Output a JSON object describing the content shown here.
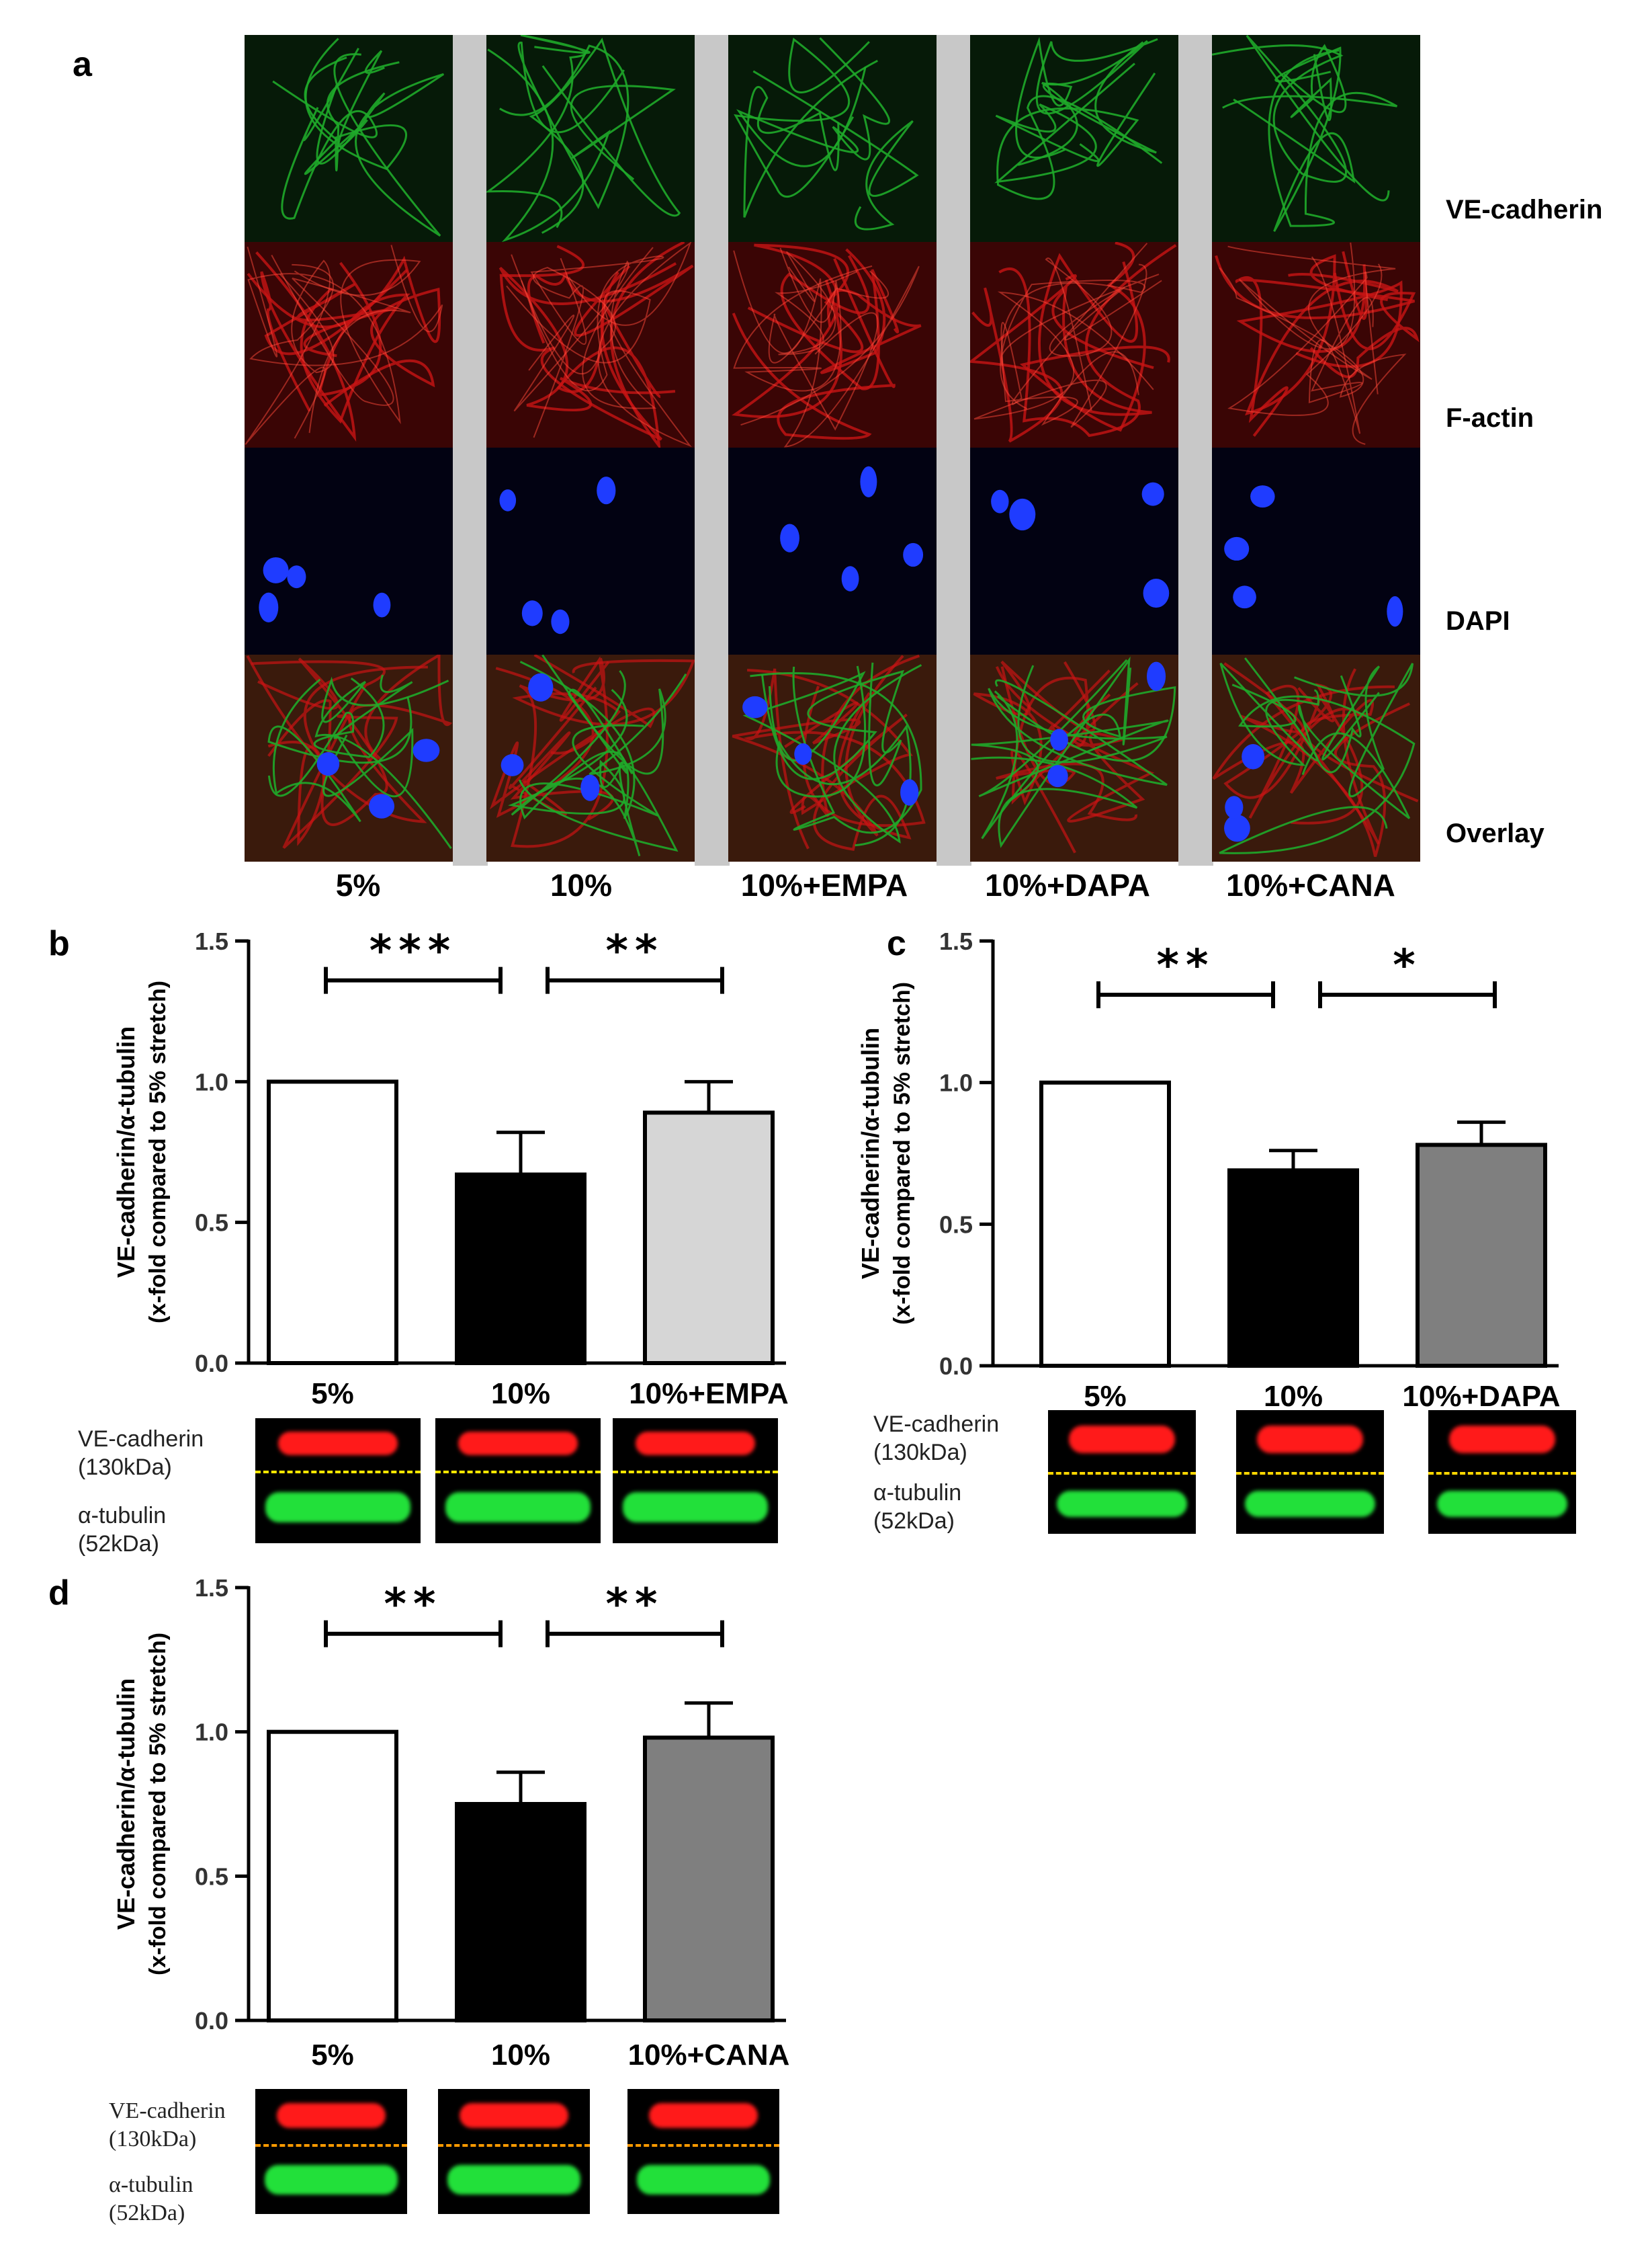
{
  "panel_a": {
    "letter": "a",
    "columns": [
      "5%",
      "10%",
      "10%+EMPA",
      "10%+DAPA",
      "10%+CANA"
    ],
    "rows": [
      "VE-cadherin",
      "F-actin",
      "DAPI",
      "Overlay"
    ],
    "channel_colors": {
      "VE-cadherin": "#1faa2a",
      "F-actin": "#c81414",
      "DAPI": "#1f3cff"
    }
  },
  "chart_data": [
    {
      "panel": "b",
      "type": "bar",
      "categories": [
        "5%",
        "10%",
        "10%+EMPA"
      ],
      "values": [
        1.0,
        0.67,
        0.89
      ],
      "errors": [
        0,
        0.15,
        0.11
      ],
      "bar_colors": [
        "#ffffff",
        "#000000",
        "#d6d6d6"
      ],
      "ylabel_line1": "VE-cadherin/α-tubulin",
      "ylabel_line2": "(x-fold compared to 5% stretch)",
      "ylim": [
        0,
        1.5
      ],
      "yticks": [
        "0.0",
        "0.5",
        "1.0",
        "1.5"
      ],
      "significance": [
        {
          "from": 0,
          "to": 1,
          "label": "***"
        },
        {
          "from": 1,
          "to": 2,
          "label": "**"
        }
      ],
      "blot": {
        "top_label": "VE-cadherin",
        "top_size": "(130kDa)",
        "bottom_label": "α-tubulin",
        "bottom_size": "(52kDa)"
      }
    },
    {
      "panel": "c",
      "type": "bar",
      "categories": [
        "5%",
        "10%",
        "10%+DAPA"
      ],
      "values": [
        1.0,
        0.69,
        0.78
      ],
      "errors": [
        0,
        0.07,
        0.08
      ],
      "bar_colors": [
        "#ffffff",
        "#000000",
        "#7f7f7f"
      ],
      "ylabel_line1": "VE-cadherin/α-tubulin",
      "ylabel_line2": "(x-fold compared to 5% stretch)",
      "ylim": [
        0,
        1.5
      ],
      "yticks": [
        "0.0",
        "0.5",
        "1.0",
        "1.5"
      ],
      "significance": [
        {
          "from": 0,
          "to": 1,
          "label": "**"
        },
        {
          "from": 1,
          "to": 2,
          "label": "*"
        }
      ],
      "blot": {
        "top_label": "VE-cadherin",
        "top_size": "(130kDa)",
        "bottom_label": "α-tubulin",
        "bottom_size": "(52kDa)"
      }
    },
    {
      "panel": "d",
      "type": "bar",
      "categories": [
        "5%",
        "10%",
        "10%+CANA"
      ],
      "values": [
        1.0,
        0.75,
        0.98
      ],
      "errors": [
        0,
        0.11,
        0.12
      ],
      "bar_colors": [
        "#ffffff",
        "#000000",
        "#7f7f7f"
      ],
      "ylabel_line1": "VE-cadherin/α-tubulin",
      "ylabel_line2": "(x-fold compared to 5% stretch)",
      "ylim": [
        0,
        1.5
      ],
      "yticks": [
        "0.0",
        "0.5",
        "1.0",
        "1.5"
      ],
      "significance": [
        {
          "from": 0,
          "to": 1,
          "label": "**"
        },
        {
          "from": 1,
          "to": 2,
          "label": "**"
        }
      ],
      "blot": {
        "top_label": "VE-cadherin",
        "top_size": "(130kDa)",
        "bottom_label": "α-tubulin",
        "bottom_size": "(52kDa)"
      }
    }
  ]
}
